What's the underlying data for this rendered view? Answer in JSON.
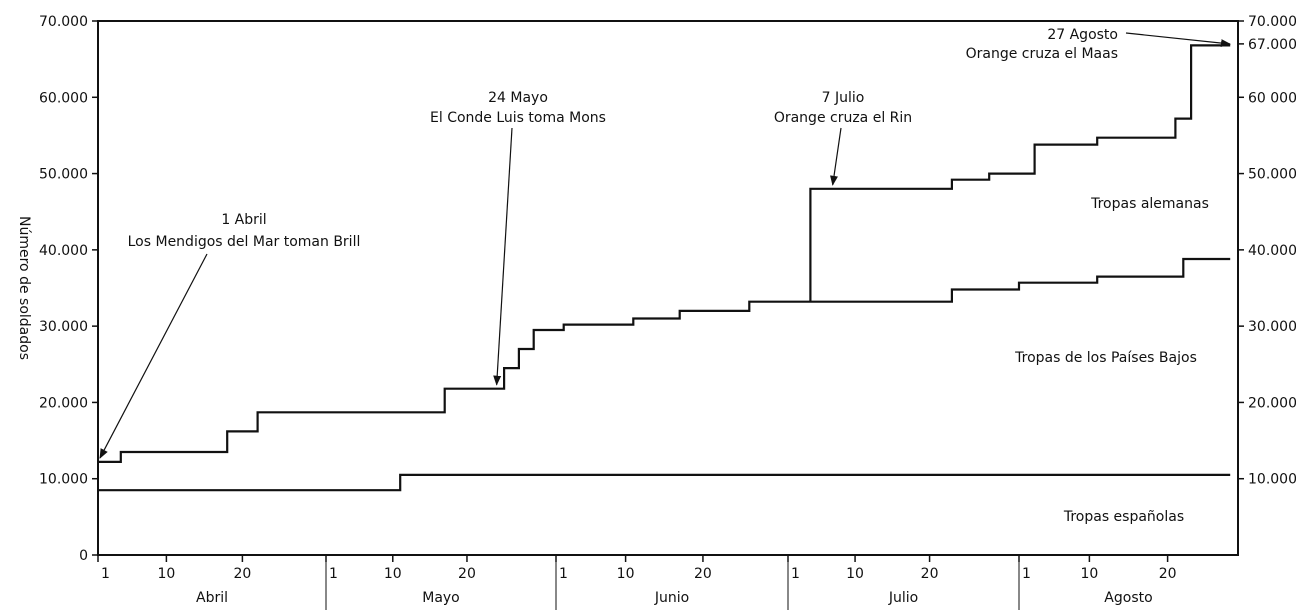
{
  "chart_data": {
    "type": "line",
    "ylabel": "Número de soldados",
    "ylim": [
      0,
      70000
    ],
    "left_ticks": [
      "0",
      "10.000",
      "20.000",
      "30.000",
      "40.000",
      "50.000",
      "60.000",
      "70.000"
    ],
    "right_ticks": [
      {
        "label": "10.000",
        "value": 10000
      },
      {
        "label": "20.000",
        "value": 20000
      },
      {
        "label": "30.000",
        "value": 30000
      },
      {
        "label": "40.000",
        "value": 40000
      },
      {
        "label": "50.000",
        "value": 50000
      },
      {
        "label": "60 000",
        "value": 60000
      },
      {
        "label": "67.000",
        "value": 67000
      },
      {
        "label": "70.000",
        "value": 70000
      }
    ],
    "months": [
      {
        "name": "Abril",
        "days": 30,
        "tick_labels": [
          "1",
          "10",
          "20"
        ]
      },
      {
        "name": "Mayo",
        "days": 31,
        "tick_labels": [
          "1",
          "10",
          "20"
        ]
      },
      {
        "name": "Junio",
        "days": 30,
        "tick_labels": [
          "1",
          "10",
          "20"
        ]
      },
      {
        "name": "Julio",
        "days": 31,
        "tick_labels": [
          "1",
          "10",
          "20"
        ]
      },
      {
        "name": "Agosto",
        "days": 28,
        "tick_labels": [
          "1",
          "10",
          "20"
        ]
      }
    ],
    "series": [
      {
        "name": "Tropas españolas",
        "points": [
          [
            "Abril 1",
            8500
          ],
          [
            "Mayo 11",
            8500
          ],
          [
            "Mayo 11",
            10500
          ],
          [
            "Agosto 28",
            10500
          ]
        ]
      },
      {
        "name": "Tropas de los Países Bajos",
        "points": [
          [
            "Abril 1",
            12200
          ],
          [
            "Abril 4",
            12200
          ],
          [
            "Abril 4",
            13500
          ],
          [
            "Abril 18",
            13500
          ],
          [
            "Abril 18",
            16200
          ],
          [
            "Abril 22",
            16200
          ],
          [
            "Abril 22",
            18700
          ],
          [
            "Mayo 17",
            18700
          ],
          [
            "Mayo 17",
            21800
          ],
          [
            "Mayo 25",
            21800
          ],
          [
            "Mayo 25",
            24500
          ],
          [
            "Mayo 27",
            24500
          ],
          [
            "Mayo 27",
            27000
          ],
          [
            "Mayo 29",
            27000
          ],
          [
            "Mayo 29",
            29500
          ],
          [
            "Junio 2",
            29500
          ],
          [
            "Junio 2",
            30200
          ],
          [
            "Junio 11",
            30200
          ],
          [
            "Junio 11",
            31000
          ],
          [
            "Junio 17",
            31000
          ],
          [
            "Junio 17",
            32000
          ],
          [
            "Junio 26",
            32000
          ],
          [
            "Junio 26",
            33200
          ],
          [
            "Julio 23",
            33200
          ],
          [
            "Julio 23",
            34800
          ],
          [
            "Agosto 1",
            34800
          ],
          [
            "Agosto 1",
            35700
          ],
          [
            "Agosto 11",
            35700
          ],
          [
            "Agosto 11",
            36500
          ],
          [
            "Agosto 22",
            36500
          ],
          [
            "Agosto 22",
            38800
          ],
          [
            "Agosto 28",
            38800
          ]
        ]
      },
      {
        "name": "Tropas alemanas",
        "points": [
          [
            "Julio 4",
            33200
          ],
          [
            "Julio 4",
            48000
          ],
          [
            "Julio 23",
            48000
          ],
          [
            "Julio 23",
            49200
          ],
          [
            "Julio 28",
            49200
          ],
          [
            "Julio 28",
            50000
          ],
          [
            "Agosto 3",
            50000
          ],
          [
            "Agosto 3",
            53800
          ],
          [
            "Agosto 11",
            53800
          ],
          [
            "Agosto 11",
            54700
          ],
          [
            "Agosto 21",
            54700
          ],
          [
            "Agosto 21",
            57200
          ],
          [
            "Agosto 23",
            57200
          ],
          [
            "Agosto 23",
            66800
          ],
          [
            "Agosto 28",
            66800
          ]
        ]
      }
    ],
    "region_labels": [
      "Tropas alemanas",
      "Tropas de los Países Bajos",
      "Tropas españolas"
    ],
    "annotations": [
      {
        "line1": "1 Abril",
        "line2": "Los Mendigos del Mar toman Brill",
        "date": "Abril 1",
        "value": 12200
      },
      {
        "line1": "24 Mayo",
        "line2": "El Conde Luis toma Mons",
        "date": "Mayo 24",
        "value": 21800
      },
      {
        "line1": "7 Julio",
        "line2": "Orange cruza el Rin",
        "date": "Julio 7",
        "value": 48000
      },
      {
        "line1": "27 Agosto",
        "line2": "Orange cruza el Maas",
        "date": "Agosto 28",
        "value": 67000
      }
    ]
  }
}
